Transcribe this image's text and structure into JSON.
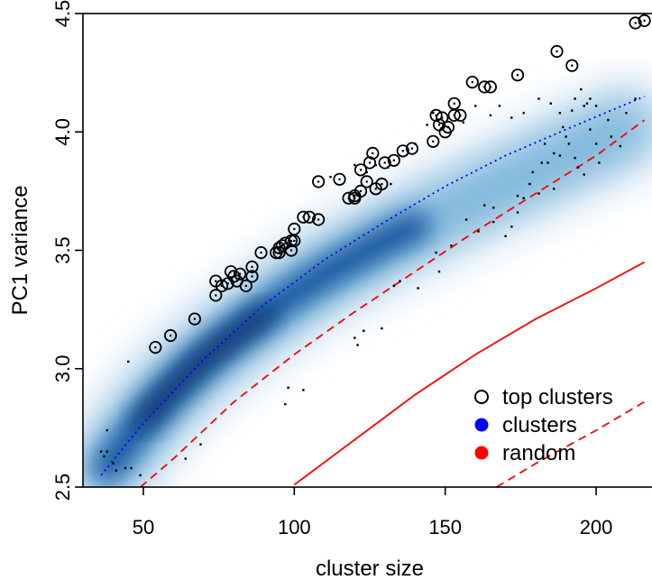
{
  "chart_data": {
    "type": "scatter",
    "xlabel": "cluster size",
    "ylabel": "PC1 variance",
    "xlim": [
      30,
      220
    ],
    "ylim": [
      2.5,
      4.5
    ],
    "x_ticks": [
      50,
      100,
      150,
      200
    ],
    "y_ticks": [
      2.5,
      3.0,
      3.5,
      4.0,
      4.5
    ],
    "x_tick_labels": [
      "50",
      "100",
      "150",
      "200"
    ],
    "y_tick_labels": [
      "2.5",
      "3.0",
      "3.5",
      "4.0",
      "4.5"
    ],
    "legend_position": "bottom-right",
    "colors": {
      "density": "#08519c",
      "clusters": "#0000ff",
      "random": "#ff0000",
      "top_clusters": "#000000"
    },
    "legend": [
      {
        "label": "top clusters",
        "marker": "open-circle",
        "color": "#000000"
      },
      {
        "label": "clusters",
        "marker": "filled-circle",
        "color": "#0000ff"
      },
      {
        "label": "random",
        "marker": "filled-circle",
        "color": "#ff0000"
      }
    ],
    "density_ridge": {
      "x": [
        38,
        50,
        60,
        70,
        80,
        90,
        100,
        110,
        120,
        130,
        140,
        150,
        160,
        170,
        180,
        190,
        200,
        210
      ],
      "y": [
        2.58,
        2.78,
        2.92,
        3.04,
        3.14,
        3.23,
        3.32,
        3.4,
        3.47,
        3.54,
        3.6,
        3.66,
        3.72,
        3.78,
        3.84,
        3.9,
        3.96,
        4.02
      ]
    },
    "clusters_fit": {
      "style": "dotted",
      "x": [
        36,
        50,
        70,
        90,
        110,
        130,
        150,
        170,
        190,
        216
      ],
      "y": [
        2.55,
        2.77,
        3.04,
        3.27,
        3.46,
        3.62,
        3.77,
        3.9,
        4.01,
        4.15
      ]
    },
    "random_mean": {
      "style": "solid",
      "x": [
        100,
        120,
        140,
        160,
        180,
        200,
        216
      ],
      "y": [
        2.51,
        2.7,
        2.89,
        3.06,
        3.21,
        3.34,
        3.45
      ]
    },
    "random_upper": {
      "style": "dashed",
      "x": [
        49,
        60,
        80,
        100,
        120,
        140,
        160,
        180,
        200,
        216
      ],
      "y": [
        2.5,
        2.62,
        2.86,
        3.06,
        3.24,
        3.41,
        3.58,
        3.74,
        3.9,
        4.05
      ]
    },
    "random_lower": {
      "style": "dashed",
      "x": [
        167,
        180,
        200,
        216
      ],
      "y": [
        2.5,
        2.6,
        2.74,
        2.86
      ]
    },
    "top_clusters": [
      [
        54,
        3.09
      ],
      [
        59,
        3.14
      ],
      [
        67,
        3.21
      ],
      [
        74,
        3.31
      ],
      [
        74,
        3.37
      ],
      [
        76,
        3.35
      ],
      [
        78,
        3.36
      ],
      [
        79,
        3.41
      ],
      [
        80,
        3.39
      ],
      [
        81,
        3.37
      ],
      [
        82,
        3.4
      ],
      [
        84,
        3.35
      ],
      [
        86,
        3.39
      ],
      [
        86,
        3.43
      ],
      [
        89,
        3.49
      ],
      [
        94,
        3.49
      ],
      [
        95,
        3.49
      ],
      [
        95,
        3.51
      ],
      [
        96,
        3.52
      ],
      [
        97,
        3.53
      ],
      [
        99,
        3.5
      ],
      [
        99,
        3.54
      ],
      [
        100,
        3.54
      ],
      [
        100,
        3.59
      ],
      [
        103,
        3.64
      ],
      [
        105,
        3.64
      ],
      [
        108,
        3.79
      ],
      [
        108,
        3.63
      ],
      [
        115,
        3.8
      ],
      [
        118,
        3.72
      ],
      [
        120,
        3.72
      ],
      [
        120,
        3.73
      ],
      [
        122,
        3.75
      ],
      [
        122,
        3.84
      ],
      [
        124,
        3.79
      ],
      [
        125,
        3.87
      ],
      [
        126,
        3.91
      ],
      [
        127,
        3.76
      ],
      [
        129,
        3.78
      ],
      [
        130,
        3.87
      ],
      [
        133,
        3.88
      ],
      [
        136,
        3.92
      ],
      [
        139,
        3.93
      ],
      [
        146,
        3.96
      ],
      [
        147,
        4.07
      ],
      [
        148,
        4.03
      ],
      [
        149,
        4.06
      ],
      [
        150,
        4.0
      ],
      [
        151,
        4.02
      ],
      [
        153,
        4.07
      ],
      [
        153,
        4.12
      ],
      [
        155,
        4.07
      ],
      [
        159,
        4.21
      ],
      [
        163,
        4.19
      ],
      [
        165,
        4.19
      ],
      [
        174,
        4.24
      ],
      [
        187,
        4.34
      ],
      [
        192,
        4.28
      ],
      [
        213,
        4.46
      ],
      [
        216,
        4.47
      ]
    ],
    "small_points": [
      [
        36,
        2.65
      ],
      [
        37,
        2.63
      ],
      [
        38,
        2.65
      ],
      [
        38,
        2.74
      ],
      [
        40,
        2.6
      ],
      [
        41,
        2.57
      ],
      [
        44,
        2.58
      ],
      [
        45,
        3.03
      ],
      [
        46,
        2.58
      ],
      [
        49,
        2.55
      ],
      [
        64,
        2.62
      ],
      [
        69,
        2.68
      ],
      [
        97,
        2.85
      ],
      [
        98,
        2.92
      ],
      [
        103,
        2.91
      ],
      [
        120,
        3.13
      ],
      [
        121,
        3.1
      ],
      [
        123,
        3.16
      ],
      [
        129,
        3.17
      ],
      [
        133,
        3.35
      ],
      [
        135,
        3.37
      ],
      [
        141,
        3.34
      ],
      [
        148,
        3.41
      ],
      [
        157,
        3.63
      ],
      [
        163,
        3.69
      ],
      [
        170,
        3.56
      ],
      [
        174,
        3.66
      ],
      [
        178,
        3.78
      ],
      [
        179,
        3.83
      ],
      [
        181,
        3.74
      ],
      [
        183,
        3.95
      ],
      [
        184,
        3.87
      ],
      [
        186,
        3.91
      ],
      [
        188,
        3.9
      ],
      [
        189,
        4.02
      ],
      [
        190,
        3.98
      ],
      [
        191,
        3.95
      ],
      [
        193,
        3.89
      ],
      [
        194,
        3.85
      ],
      [
        196,
        4.11
      ],
      [
        198,
        4.14
      ],
      [
        200,
        3.95
      ],
      [
        195,
        4.18
      ],
      [
        192,
        4.09
      ],
      [
        182,
        3.87
      ],
      [
        176,
        3.72
      ],
      [
        172,
        3.6
      ],
      [
        166,
        3.62
      ],
      [
        160,
        4.11
      ],
      [
        156,
        4.04
      ],
      [
        151,
        4.02
      ],
      [
        146,
        4.08
      ],
      [
        144,
        4.03
      ],
      [
        140,
        3.95
      ],
      [
        132,
        3.78
      ],
      [
        131,
        3.85
      ],
      [
        127,
        3.86
      ],
      [
        124,
        3.83
      ],
      [
        120,
        3.86
      ],
      [
        112,
        3.81
      ],
      [
        165,
        4.07
      ],
      [
        168,
        4.11
      ],
      [
        172,
        4.06
      ],
      [
        176,
        4.08
      ],
      [
        181,
        4.14
      ],
      [
        185,
        4.12
      ],
      [
        188,
        4.08
      ],
      [
        193,
        4.14
      ],
      [
        197,
        4.12
      ],
      [
        200,
        4.11
      ],
      [
        204,
        4.05
      ],
      [
        210,
        4.08
      ],
      [
        213,
        4.14
      ],
      [
        198,
        4.01
      ],
      [
        205,
        3.98
      ],
      [
        208,
        3.94
      ],
      [
        201,
        3.87
      ],
      [
        196,
        3.82
      ],
      [
        186,
        3.76
      ],
      [
        174,
        3.73
      ],
      [
        166,
        3.68
      ],
      [
        161,
        3.58
      ],
      [
        152,
        3.52
      ],
      [
        147,
        3.49
      ]
    ]
  }
}
